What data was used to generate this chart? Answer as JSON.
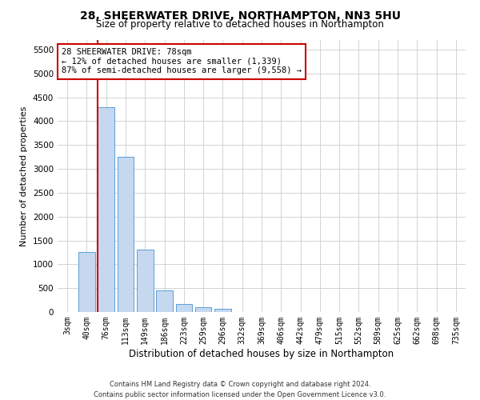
{
  "title": "28, SHEERWATER DRIVE, NORTHAMPTON, NN3 5HU",
  "subtitle": "Size of property relative to detached houses in Northampton",
  "xlabel": "Distribution of detached houses by size in Northampton",
  "ylabel": "Number of detached properties",
  "footer_line1": "Contains HM Land Registry data © Crown copyright and database right 2024.",
  "footer_line2": "Contains public sector information licensed under the Open Government Licence v3.0.",
  "categories": [
    "3sqm",
    "40sqm",
    "76sqm",
    "113sqm",
    "149sqm",
    "186sqm",
    "223sqm",
    "259sqm",
    "296sqm",
    "332sqm",
    "369sqm",
    "406sqm",
    "442sqm",
    "479sqm",
    "515sqm",
    "552sqm",
    "589sqm",
    "625sqm",
    "662sqm",
    "698sqm",
    "735sqm"
  ],
  "values": [
    0,
    1250,
    4300,
    3250,
    1300,
    450,
    175,
    100,
    75,
    0,
    0,
    0,
    0,
    0,
    0,
    0,
    0,
    0,
    0,
    0,
    0
  ],
  "bar_color": "#c5d8f0",
  "bar_edge_color": "#5a9fd4",
  "highlight_line_color": "#cc0000",
  "annotation_line1": "28 SHEERWATER DRIVE: 78sqm",
  "annotation_line2": "← 12% of detached houses are smaller (1,339)",
  "annotation_line3": "87% of semi-detached houses are larger (9,558) →",
  "annotation_box_color": "#ffffff",
  "annotation_box_edge": "#cc0000",
  "ylim": [
    0,
    5700
  ],
  "yticks": [
    0,
    500,
    1000,
    1500,
    2000,
    2500,
    3000,
    3500,
    4000,
    4500,
    5000,
    5500
  ],
  "background_color": "#ffffff",
  "grid_color": "#cccccc",
  "title_fontsize": 10,
  "subtitle_fontsize": 8.5,
  "ylabel_fontsize": 8,
  "xlabel_fontsize": 8.5,
  "tick_fontsize": 7,
  "annotation_fontsize": 7.5,
  "footer_fontsize": 6
}
